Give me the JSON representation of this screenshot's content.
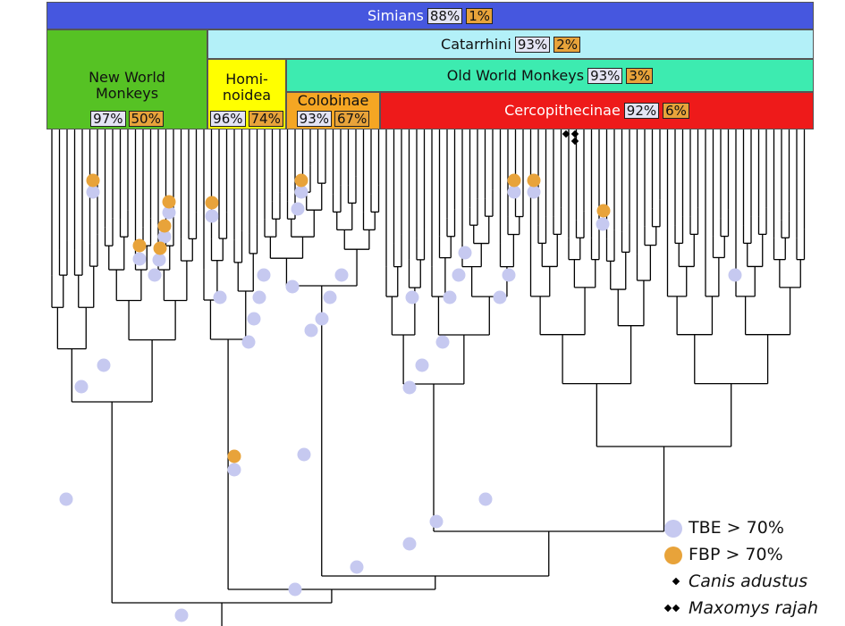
{
  "clades": [
    {
      "name": "Simians",
      "tbe": "88%",
      "fbp": "1%"
    },
    {
      "name": "Catarrhini",
      "tbe": "93%",
      "fbp": "2%"
    },
    {
      "name": "New World Monkeys",
      "tbe": "97%",
      "fbp": "50%"
    },
    {
      "name": "Homi-\nnoidea",
      "tbe": "96%",
      "fbp": "74%"
    },
    {
      "name": "Old World Monkeys",
      "tbe": "93%",
      "fbp": "3%"
    },
    {
      "name": "Colobinae",
      "tbe": "93%",
      "fbp": "67%"
    },
    {
      "name": "Cercopithecinae",
      "tbe": "92%",
      "fbp": "6%"
    }
  ],
  "legend": [
    {
      "label": "TBE > 70%"
    },
    {
      "label": "FBP > 70%"
    },
    {
      "label": "Canis adustus"
    },
    {
      "label": "Maxomys rajah"
    }
  ]
}
